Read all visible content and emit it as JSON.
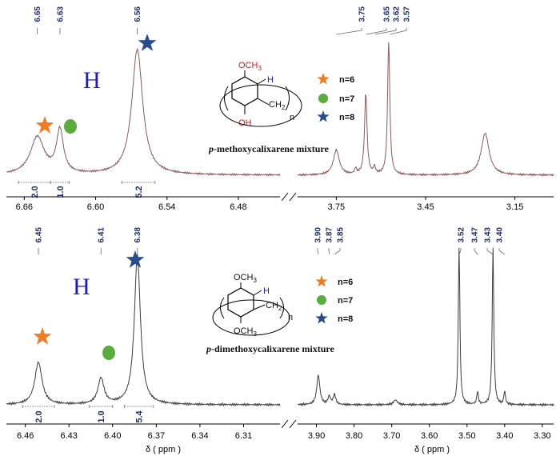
{
  "colors": {
    "spectrum_top": "#8b5a5a",
    "spectrum_bottom": "#3c3c3c",
    "label_navy": "#1f2d6b",
    "star_orange": "#f07c22",
    "circle_green": "#5aad3c",
    "star_blue": "#284b8c",
    "h_blue": "#1a1ad0",
    "oxygen_red": "#d01818"
  },
  "chart_data": [
    {
      "type": "line",
      "name": "top",
      "caption_prefix": "p",
      "caption_rest": "-methoxycalixarene mixture",
      "big_label": "H",
      "structure": {
        "och3": "OCH",
        "och3_sub": "3",
        "h": "H",
        "ch2": "CH",
        "ch2_sub": "2",
        "n": "n",
        "oh": "OH"
      },
      "x_ticks_left": [
        "6.66",
        "6.60",
        "6.54",
        "6.48"
      ],
      "x_ticks_right": [
        "3.75",
        "3.45",
        "3.15"
      ],
      "x_range_left": [
        6.675,
        6.445
      ],
      "x_range_right": [
        3.88,
        3.02
      ],
      "peak_labels_left": [
        "6.65",
        "6.63",
        "6.56"
      ],
      "peak_labels_right": [
        "3.75",
        "3.65",
        "3.62",
        "3.57"
      ],
      "peaks_left": [
        {
          "ppm": 6.649,
          "height": 0.27,
          "width": 0.007
        },
        {
          "ppm": 6.63,
          "height": 0.31,
          "width": 0.0035
        },
        {
          "ppm": 6.565,
          "height": 0.9,
          "width": 0.0055
        }
      ],
      "peaks_right": [
        {
          "ppm": 3.75,
          "height": 0.18,
          "width": 0.012
        },
        {
          "ppm": 3.685,
          "height": 0.04,
          "width": 0.004
        },
        {
          "ppm": 3.651,
          "height": 0.58,
          "width": 0.005
        },
        {
          "ppm": 3.622,
          "height": 0.05,
          "width": 0.004
        },
        {
          "ppm": 3.574,
          "height": 0.95,
          "width": 0.0045
        },
        {
          "ppm": 3.25,
          "height": 0.3,
          "width": 0.016
        }
      ],
      "integrals": [
        "2.0",
        "1.0",
        "5.2"
      ],
      "legend": [
        {
          "marker": "star",
          "color": "#f07c22",
          "label": "n=6"
        },
        {
          "marker": "circle",
          "color": "#5aad3c",
          "label": "n=7"
        },
        {
          "marker": "star",
          "color": "#284b8c",
          "label": "n=8"
        }
      ]
    },
    {
      "type": "line",
      "name": "bottom",
      "caption_prefix": "p",
      "caption_rest": "-dimethoxycalixarene mixture",
      "big_label": "H",
      "structure": {
        "och3": "OCH",
        "och3_sub": "3",
        "h": "H",
        "ch2": "CH",
        "ch2_sub": "2",
        "n": "n",
        "och3b": "OCH",
        "och3b_sub": "3"
      },
      "x_ticks_left": [
        "6.46",
        "6.43",
        "6.40",
        "6.37",
        "6.34",
        "6.31"
      ],
      "x_ticks_right": [
        "3.90",
        "3.80",
        "3.70",
        "3.60",
        "3.50",
        "3.40",
        "3.30"
      ],
      "x_range_left": [
        6.473,
        6.285
      ],
      "x_range_right": [
        3.95,
        3.27
      ],
      "x_axis_label": "δ ( ppm )",
      "peak_labels_left": [
        "6.45",
        "6.41",
        "6.38"
      ],
      "peak_labels_right": [
        "3.90",
        "3.87",
        "3.85",
        "3.52",
        "3.47",
        "3.43",
        "3.40"
      ],
      "peaks_left": [
        {
          "ppm": 6.451,
          "height": 0.26,
          "width": 0.003
        },
        {
          "ppm": 6.408,
          "height": 0.16,
          "width": 0.0025
        },
        {
          "ppm": 6.383,
          "height": 0.92,
          "width": 0.0025
        }
      ],
      "peaks_right": [
        {
          "ppm": 3.895,
          "height": 0.18,
          "width": 0.005
        },
        {
          "ppm": 3.866,
          "height": 0.05,
          "width": 0.004
        },
        {
          "ppm": 3.852,
          "height": 0.06,
          "width": 0.004
        },
        {
          "ppm": 3.69,
          "height": 0.03,
          "width": 0.006
        },
        {
          "ppm": 3.521,
          "height": 0.97,
          "width": 0.0025
        },
        {
          "ppm": 3.472,
          "height": 0.08,
          "width": 0.0025
        },
        {
          "ppm": 3.431,
          "height": 0.97,
          "width": 0.0025
        },
        {
          "ppm": 3.4,
          "height": 0.08,
          "width": 0.0025
        }
      ],
      "integrals": [
        "2.0",
        "1.0",
        "5.4"
      ],
      "legend": [
        {
          "marker": "star",
          "color": "#f07c22",
          "label": "n=6"
        },
        {
          "marker": "circle",
          "color": "#5aad3c",
          "label": "n=7"
        },
        {
          "marker": "star",
          "color": "#284b8c",
          "label": "n=8"
        }
      ]
    }
  ]
}
